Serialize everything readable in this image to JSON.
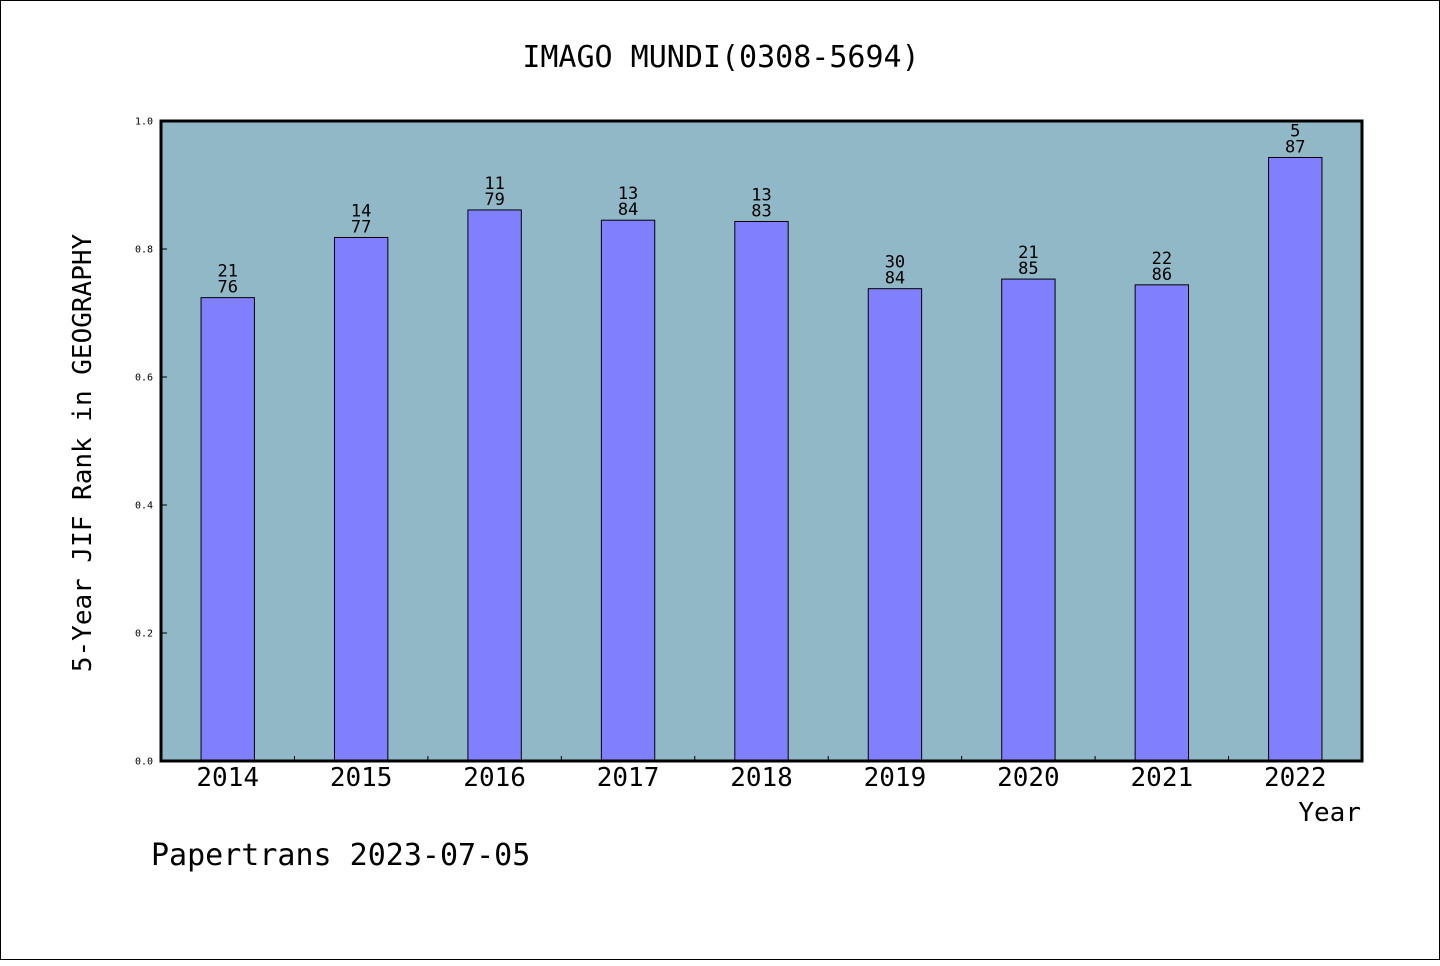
{
  "chart_data": {
    "type": "bar",
    "title": "IMAGO MUNDI(0308-5694)",
    "xlabel": "Year",
    "ylabel": "5-Year JIF Rank in GEOGRAPHY",
    "footer": "Papertrans 2023-07-05",
    "categories": [
      "2014",
      "2015",
      "2016",
      "2017",
      "2018",
      "2019",
      "2020",
      "2021",
      "2022"
    ],
    "values": [
      0.724,
      0.818,
      0.861,
      0.845,
      0.843,
      0.738,
      0.753,
      0.744,
      0.943
    ],
    "labels_top": [
      "21",
      "14",
      "11",
      "13",
      "13",
      "30",
      "21",
      "22",
      "5"
    ],
    "labels_bottom": [
      "76",
      "77",
      "79",
      "84",
      "83",
      "84",
      "85",
      "86",
      "87"
    ],
    "ylim": [
      0,
      1.0
    ],
    "yticks": [
      "0.0",
      "0.2",
      "0.4",
      "0.6",
      "0.8",
      "1.0"
    ],
    "grid": false,
    "colors": {
      "plot_background": "#91b8c7",
      "bar_fill": "#8080ff",
      "bar_stroke": "#000000"
    }
  }
}
